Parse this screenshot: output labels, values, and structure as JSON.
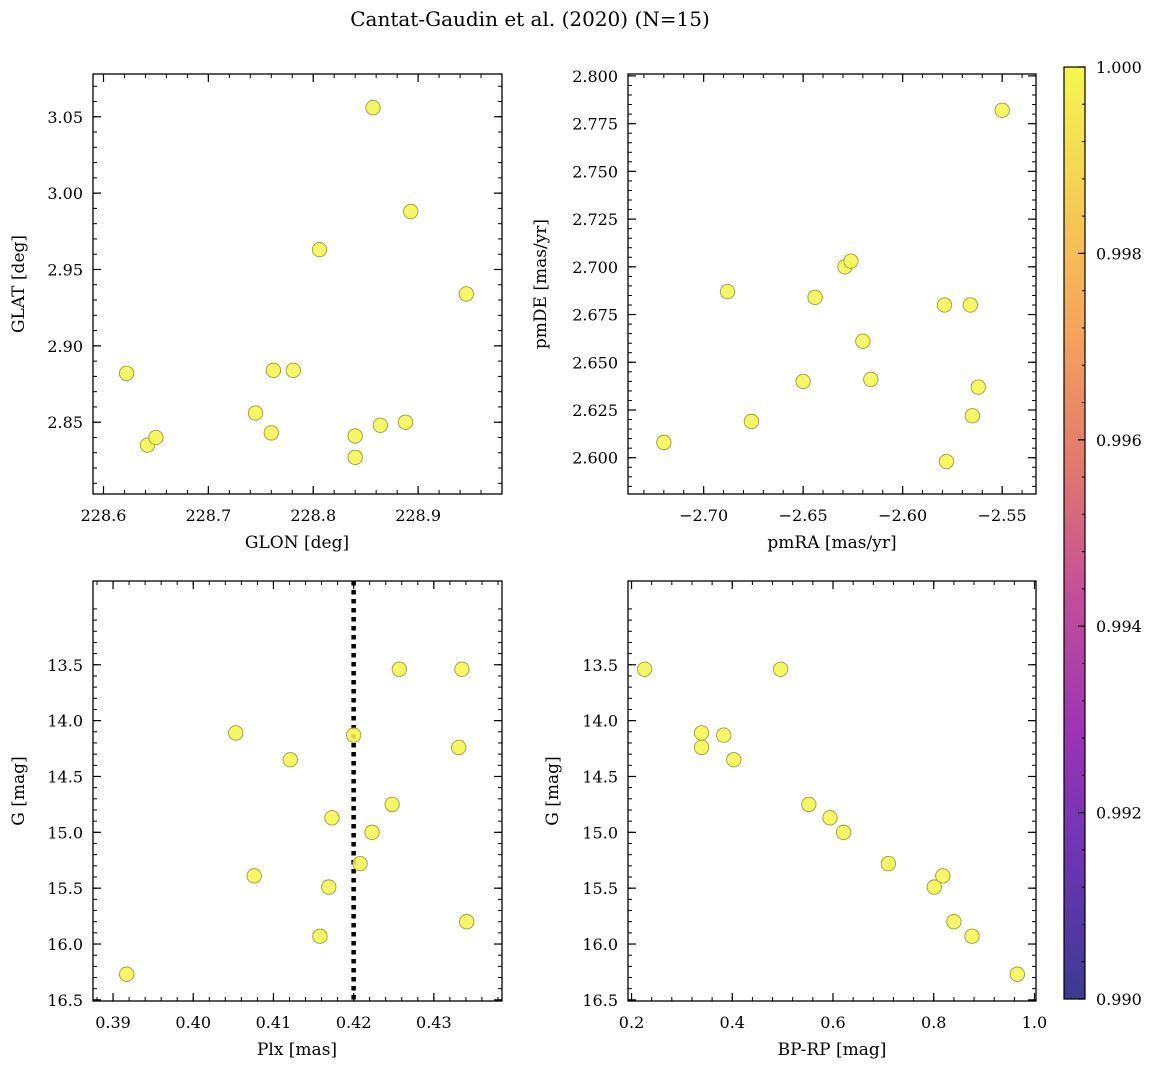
{
  "figure": {
    "title": "Cantat-Gaudin et al. (2020) (N=15)"
  },
  "colorbar": {
    "min": 0.99,
    "max": 1.0,
    "ticks": [
      0.99,
      0.992,
      0.994,
      0.996,
      0.998,
      1.0
    ],
    "tick_labels": [
      "0.990",
      "0.992",
      "0.994",
      "0.996",
      "0.998",
      "1.000"
    ],
    "colormap": "plasma",
    "colors": [
      "#3b3b8f",
      "#6a35b3",
      "#9b34b5",
      "#c24d9a",
      "#e2786f",
      "#f4a35c",
      "#f6cd55",
      "#f4f74c"
    ]
  },
  "chart_data": [
    {
      "type": "scatter",
      "xlabel": "GLON [deg]",
      "ylabel": "GLAT [deg]",
      "xlim": [
        228.59,
        228.98
      ],
      "ylim": [
        2.803,
        3.078
      ],
      "xticks": [
        228.6,
        228.7,
        228.8,
        228.9
      ],
      "xtick_labels": [
        "228.6",
        "228.7",
        "228.8",
        "228.9"
      ],
      "yticks": [
        2.85,
        2.9,
        2.95,
        3.0,
        3.05
      ],
      "ytick_labels": [
        "2.85",
        "2.90",
        "2.95",
        "3.00",
        "3.05"
      ],
      "x": [
        228.622,
        228.642,
        228.65,
        228.745,
        228.76,
        228.762,
        228.781,
        228.806,
        228.84,
        228.84,
        228.857,
        228.864,
        228.888,
        228.893,
        228.946
      ],
      "y": [
        2.882,
        2.835,
        2.84,
        2.856,
        2.843,
        2.884,
        2.884,
        2.963,
        2.841,
        2.827,
        3.056,
        2.848,
        2.85,
        2.988,
        2.934
      ],
      "color_value": 1.0,
      "color": "#f4f74c"
    },
    {
      "type": "scatter",
      "xlabel": "pmRA [mas/yr]",
      "ylabel": "pmDE [mas/yr]",
      "xlim": [
        -2.738,
        -2.533
      ],
      "ylim": [
        2.581,
        2.801
      ],
      "xticks": [
        -2.7,
        -2.65,
        -2.6,
        -2.55
      ],
      "xtick_labels": [
        "−2.70",
        "−2.65",
        "−2.60",
        "−2.55"
      ],
      "yticks": [
        2.6,
        2.625,
        2.65,
        2.675,
        2.7,
        2.725,
        2.75,
        2.775,
        2.8
      ],
      "ytick_labels": [
        "2.600",
        "2.625",
        "2.650",
        "2.675",
        "2.700",
        "2.725",
        "2.750",
        "2.775",
        "2.800"
      ],
      "x": [
        -2.72,
        -2.688,
        -2.676,
        -2.65,
        -2.644,
        -2.629,
        -2.626,
        -2.62,
        -2.616,
        -2.579,
        -2.578,
        -2.566,
        -2.565,
        -2.562,
        -2.55
      ],
      "y": [
        2.608,
        2.687,
        2.619,
        2.64,
        2.684,
        2.7,
        2.703,
        2.661,
        2.641,
        2.68,
        2.598,
        2.68,
        2.622,
        2.637,
        2.782
      ],
      "color_value": 1.0,
      "color": "#f4f74c"
    },
    {
      "type": "scatter",
      "xlabel": "Plx [mas]",
      "ylabel": "G [mag]",
      "xlim": [
        0.3875,
        0.4385
      ],
      "ylim": [
        16.51,
        12.75
      ],
      "y_inverted": true,
      "xticks": [
        0.39,
        0.4,
        0.41,
        0.42,
        0.43
      ],
      "xtick_labels": [
        "0.39",
        "0.40",
        "0.41",
        "0.42",
        "0.43"
      ],
      "yticks": [
        13.5,
        14.0,
        14.5,
        15.0,
        15.5,
        16.0,
        16.5
      ],
      "ytick_labels": [
        "13.5",
        "14.0",
        "14.5",
        "15.0",
        "15.5",
        "16.0",
        "16.5"
      ],
      "x": [
        0.3917,
        0.4053,
        0.4076,
        0.4121,
        0.4158,
        0.4169,
        0.4173,
        0.42,
        0.4208,
        0.4223,
        0.4248,
        0.4257,
        0.4331,
        0.4335,
        0.4341
      ],
      "y": [
        16.27,
        14.11,
        15.39,
        14.35,
        15.93,
        15.49,
        14.87,
        14.13,
        15.28,
        15.0,
        14.75,
        13.54,
        14.24,
        13.54,
        15.8
      ],
      "vline": 0.42,
      "color_value": 1.0,
      "color": "#f4f74c"
    },
    {
      "type": "scatter",
      "xlabel": "BP-RP [mag]",
      "ylabel": "G [mag]",
      "xlim": [
        0.193,
        1.003
      ],
      "ylim": [
        16.51,
        12.75
      ],
      "y_inverted": true,
      "xticks": [
        0.2,
        0.4,
        0.6,
        0.8,
        1.0
      ],
      "xtick_labels": [
        "0.2",
        "0.4",
        "0.6",
        "0.8",
        "1.0"
      ],
      "yticks": [
        13.5,
        14.0,
        14.5,
        15.0,
        15.5,
        16.0,
        16.5
      ],
      "ytick_labels": [
        "13.5",
        "14.0",
        "14.5",
        "15.0",
        "15.5",
        "16.0",
        "16.5"
      ],
      "x": [
        0.226,
        0.339,
        0.339,
        0.383,
        0.403,
        0.496,
        0.552,
        0.594,
        0.621,
        0.71,
        0.801,
        0.818,
        0.84,
        0.876,
        0.966
      ],
      "y": [
        13.54,
        14.11,
        14.24,
        14.13,
        14.35,
        13.54,
        14.75,
        14.87,
        15.0,
        15.28,
        15.49,
        15.39,
        15.8,
        15.93,
        16.27
      ],
      "color_value": 1.0,
      "color": "#f4f74c"
    }
  ]
}
